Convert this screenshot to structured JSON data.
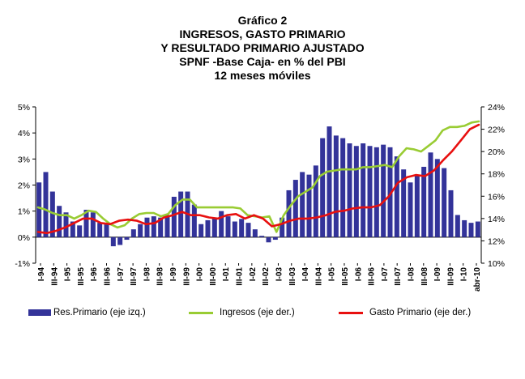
{
  "title_lines": [
    "Gráfico 2",
    "INGRESOS, GASTO PRIMARIO",
    "Y RESULTADO PRIMARIO AJUSTADO",
    "SPNF -Base Caja- en % del PBI",
    "12 meses móviles"
  ],
  "colors": {
    "bars": "#333399",
    "ingresos": "#99cc33",
    "gasto": "#e8100f"
  },
  "chart_data": {
    "type": "bar",
    "title": "INGRESOS, GASTO PRIMARIO Y RESULTADO PRIMARIO AJUSTADO",
    "x_tick_labels": [
      "I-94",
      "III-94",
      "I-95",
      "III-95",
      "I-96",
      "III-96",
      "I-97",
      "III-97",
      "I-98",
      "III-98",
      "I-99",
      "III-99",
      "I-00",
      "III-00",
      "I-01",
      "III-01",
      "I-02",
      "III-02",
      "I-03",
      "III-03",
      "I-04",
      "III-04",
      "I-05",
      "III-05",
      "I-06",
      "III-06",
      "I-07",
      "III-07",
      "I-08",
      "III-08",
      "I-09",
      "III-09",
      "I-10",
      "abr-10"
    ],
    "left_axis": {
      "ylim": [
        -1,
        5
      ],
      "ticks": [
        "-1%",
        "0%",
        "1%",
        "2%",
        "3%",
        "4%",
        "5%"
      ]
    },
    "right_axis": {
      "ylim": [
        10,
        24
      ],
      "ticks": [
        "10%",
        "12%",
        "14%",
        "16%",
        "18%",
        "20%",
        "22%",
        "24%"
      ]
    },
    "grid": false,
    "legend_position": "bottom",
    "series": [
      {
        "name": "Res.Primario (eje izq.)",
        "type": "bar",
        "axis": "left",
        "values": [
          2.1,
          2.5,
          1.75,
          1.2,
          0.95,
          0.6,
          0.45,
          1.05,
          0.95,
          0.55,
          0.5,
          -0.35,
          -0.3,
          -0.1,
          0.3,
          0.5,
          0.75,
          0.8,
          0.75,
          0.85,
          1.55,
          1.75,
          1.75,
          1.25,
          0.5,
          0.65,
          0.75,
          1.0,
          0.8,
          0.6,
          0.7,
          0.55,
          0.3,
          0.05,
          -0.2,
          -0.1,
          0.75,
          1.8,
          2.2,
          2.5,
          2.4,
          2.75,
          3.8,
          4.25,
          3.9,
          3.8,
          3.6,
          3.5,
          3.6,
          3.5,
          3.45,
          3.55,
          3.45,
          3.1,
          2.6,
          2.1,
          2.35,
          2.7,
          3.25,
          3.0,
          2.65,
          1.8,
          0.85,
          0.65,
          0.55,
          0.6
        ]
      },
      {
        "name": "Ingresos (eje der.)",
        "type": "line",
        "axis": "right",
        "values": [
          15.0,
          14.8,
          14.5,
          14.3,
          14.3,
          14.0,
          14.3,
          14.7,
          14.6,
          14.0,
          13.5,
          13.2,
          13.4,
          14.0,
          14.4,
          14.5,
          14.5,
          14.2,
          14.4,
          15.2,
          15.7,
          15.7,
          15.0,
          15.0,
          15.0,
          15.0,
          15.0,
          15.0,
          14.9,
          14.3,
          14.2,
          14.1,
          14.2,
          12.8,
          14.3,
          15.2,
          16.0,
          16.4,
          16.8,
          17.8,
          18.2,
          18.3,
          18.4,
          18.4,
          18.4,
          18.6,
          18.6,
          18.7,
          18.8,
          18.6,
          19.6,
          20.3,
          20.2,
          20.0,
          20.5,
          21.0,
          21.9,
          22.2,
          22.2,
          22.3,
          22.6,
          22.7
        ]
      },
      {
        "name": "Gasto Primario (eje der.)",
        "type": "line",
        "axis": "right",
        "values": [
          12.8,
          12.7,
          12.9,
          13.2,
          13.6,
          14.0,
          14.0,
          13.6,
          13.5,
          13.8,
          13.9,
          13.8,
          13.5,
          13.6,
          14.1,
          14.3,
          14.6,
          14.3,
          14.3,
          14.1,
          14.0,
          14.3,
          14.4,
          14.0,
          14.3,
          14.0,
          13.3,
          13.5,
          13.8,
          14.0,
          14.0,
          14.1,
          14.3,
          14.6,
          14.7,
          14.9,
          15.0,
          15.0,
          15.2,
          16.0,
          17.2,
          17.7,
          17.9,
          17.8,
          18.3,
          19.2,
          20.0,
          21.0,
          22.0,
          22.4
        ]
      }
    ]
  }
}
